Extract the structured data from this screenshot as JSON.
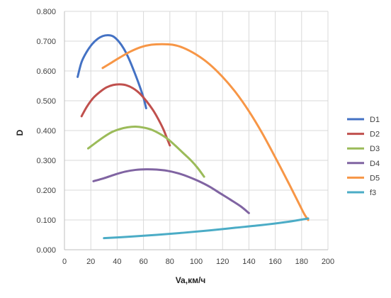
{
  "chart_data": {
    "type": "line",
    "xlabel": "Va,км/ч",
    "ylabel": "D",
    "xlim": [
      0,
      200
    ],
    "ylim": [
      0,
      0.8
    ],
    "x_ticks": [
      "0",
      "20",
      "40",
      "60",
      "80",
      "100",
      "120",
      "140",
      "160",
      "180",
      "200"
    ],
    "y_ticks": [
      "0.000",
      "0.100",
      "0.200",
      "0.300",
      "0.400",
      "0.500",
      "0.600",
      "0.700",
      "0.800"
    ],
    "grid": true,
    "legend_position": "right",
    "series": [
      {
        "name": "D1",
        "color": "#4472C4",
        "points": [
          [
            10,
            0.58
          ],
          [
            13,
            0.63
          ],
          [
            17,
            0.665
          ],
          [
            21,
            0.69
          ],
          [
            25,
            0.707
          ],
          [
            29,
            0.717
          ],
          [
            33,
            0.72
          ],
          [
            37,
            0.716
          ],
          [
            41,
            0.7
          ],
          [
            45,
            0.675
          ],
          [
            49,
            0.64
          ],
          [
            53,
            0.597
          ],
          [
            57,
            0.55
          ],
          [
            60,
            0.51
          ],
          [
            62,
            0.475
          ]
        ]
      },
      {
        "name": "D2",
        "color": "#C0504D",
        "points": [
          [
            13,
            0.448
          ],
          [
            17,
            0.48
          ],
          [
            22,
            0.51
          ],
          [
            27,
            0.53
          ],
          [
            32,
            0.545
          ],
          [
            37,
            0.553
          ],
          [
            42,
            0.555
          ],
          [
            47,
            0.552
          ],
          [
            52,
            0.542
          ],
          [
            57,
            0.525
          ],
          [
            62,
            0.5
          ],
          [
            67,
            0.47
          ],
          [
            71,
            0.44
          ],
          [
            75,
            0.405
          ],
          [
            78,
            0.372
          ],
          [
            80,
            0.35
          ]
        ]
      },
      {
        "name": "D3",
        "color": "#9BBB59",
        "points": [
          [
            18,
            0.34
          ],
          [
            24,
            0.36
          ],
          [
            30,
            0.379
          ],
          [
            36,
            0.395
          ],
          [
            42,
            0.405
          ],
          [
            48,
            0.411
          ],
          [
            54,
            0.413
          ],
          [
            60,
            0.41
          ],
          [
            66,
            0.403
          ],
          [
            72,
            0.39
          ],
          [
            78,
            0.373
          ],
          [
            84,
            0.35
          ],
          [
            90,
            0.325
          ],
          [
            96,
            0.3
          ],
          [
            101,
            0.275
          ],
          [
            106,
            0.245
          ]
        ]
      },
      {
        "name": "D4",
        "color": "#8064A2",
        "points": [
          [
            22,
            0.23
          ],
          [
            30,
            0.24
          ],
          [
            38,
            0.252
          ],
          [
            46,
            0.262
          ],
          [
            54,
            0.268
          ],
          [
            62,
            0.27
          ],
          [
            70,
            0.269
          ],
          [
            78,
            0.265
          ],
          [
            86,
            0.257
          ],
          [
            94,
            0.245
          ],
          [
            102,
            0.23
          ],
          [
            110,
            0.212
          ],
          [
            118,
            0.19
          ],
          [
            126,
            0.168
          ],
          [
            134,
            0.145
          ],
          [
            140,
            0.123
          ]
        ]
      },
      {
        "name": "D5",
        "color": "#F79646",
        "points": [
          [
            29,
            0.61
          ],
          [
            35,
            0.626
          ],
          [
            42,
            0.645
          ],
          [
            50,
            0.665
          ],
          [
            58,
            0.68
          ],
          [
            66,
            0.688
          ],
          [
            74,
            0.69
          ],
          [
            82,
            0.688
          ],
          [
            90,
            0.678
          ],
          [
            100,
            0.655
          ],
          [
            110,
            0.623
          ],
          [
            120,
            0.58
          ],
          [
            130,
            0.528
          ],
          [
            140,
            0.465
          ],
          [
            150,
            0.392
          ],
          [
            160,
            0.31
          ],
          [
            170,
            0.225
          ],
          [
            178,
            0.155
          ],
          [
            182,
            0.12
          ],
          [
            185,
            0.1
          ]
        ]
      },
      {
        "name": "f3",
        "color": "#4BACC6",
        "points": [
          [
            30,
            0.039
          ],
          [
            50,
            0.044
          ],
          [
            70,
            0.05
          ],
          [
            90,
            0.057
          ],
          [
            110,
            0.065
          ],
          [
            130,
            0.074
          ],
          [
            150,
            0.083
          ],
          [
            170,
            0.094
          ],
          [
            185,
            0.105
          ]
        ]
      }
    ]
  }
}
